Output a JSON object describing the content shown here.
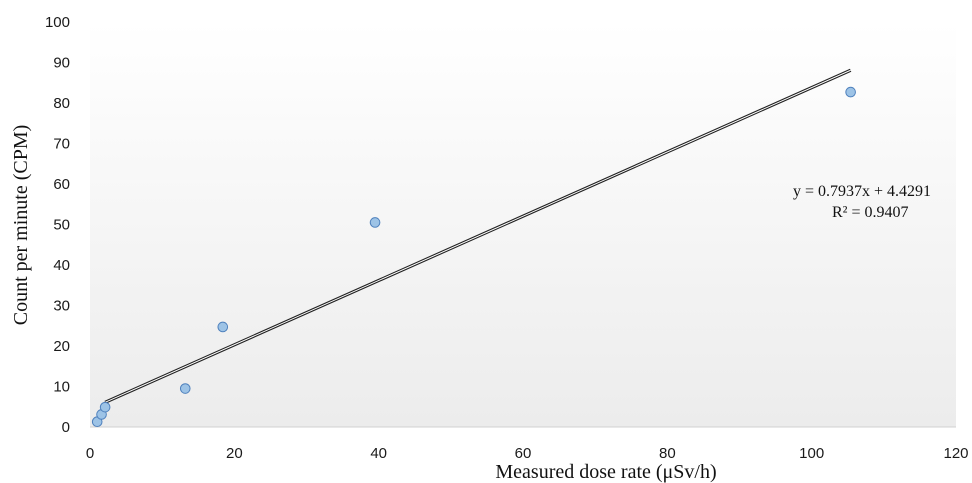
{
  "chart_data": {
    "type": "scatter",
    "title": "",
    "xlabel": "Measured dose rate (μSv/h)",
    "ylabel": "Count per minute (CPM)",
    "xlim": [
      0,
      120
    ],
    "ylim": [
      0,
      100
    ],
    "xticks": [
      "0",
      "20",
      "40",
      "60",
      "80",
      "100",
      "120"
    ],
    "yticks": [
      "0",
      "10",
      "20",
      "30",
      "40",
      "50",
      "60",
      "70",
      "80",
      "90",
      "100"
    ],
    "grid": false,
    "series": [
      {
        "points": [
          {
            "x": 1.0,
            "y": 1.3
          },
          {
            "x": 1.6,
            "y": 3.1
          },
          {
            "x": 2.1,
            "y": 4.9
          },
          {
            "x": 13.2,
            "y": 9.5
          },
          {
            "x": 18.4,
            "y": 24.7
          },
          {
            "x": 39.5,
            "y": 50.5
          },
          {
            "x": 105.4,
            "y": 82.7
          }
        ],
        "marker_color": "#9dc3e6",
        "marker_edge": "#4f81bd"
      }
    ],
    "trendline": {
      "slope": 0.7937,
      "intercept": 4.4291,
      "x_range": [
        2.1,
        105.4
      ],
      "equation": "y = 0.7937x  + 4.4291",
      "r_squared": "R² = 0.9407",
      "color": "#222222"
    },
    "background_gradient": [
      "#ffffff",
      "#ececec"
    ]
  }
}
